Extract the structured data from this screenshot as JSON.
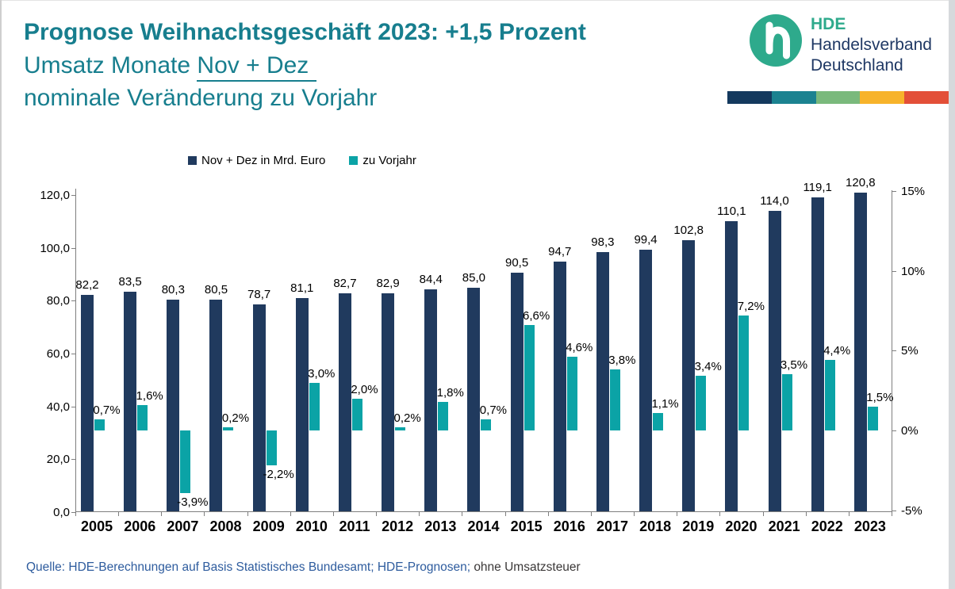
{
  "title": {
    "line1": "Prognose Weihnachtsgeschäft 2023: +1,5 Prozent",
    "line2_prefix": "Umsatz Monate ",
    "line2_underlined": "Nov + Dez",
    "line3": "nominale Veränderung zu Vorjahr",
    "color": "#177E8E"
  },
  "logo": {
    "acronym": "HDE",
    "name_line1": "Handelsverband",
    "name_line2": "Deutschland",
    "circle_color": "#2EAA8C",
    "text_color": "#1F3864",
    "stripe_colors": [
      "#14395E",
      "#1B8290",
      "#7AB97C",
      "#F7B32B",
      "#E34F38"
    ]
  },
  "legend": [
    {
      "label": "Nov + Dez in Mrd. Euro",
      "color": "#203A5E"
    },
    {
      "label": "zu Vorjahr",
      "color": "#0BA3A6"
    }
  ],
  "source": {
    "prefix": "Quelle: HDE-Berechnungen auf Basis Statistisches Bundesamt; HDE-Prognosen; ",
    "suffix": "ohne Umsatzsteuer"
  },
  "chart_data": {
    "type": "bar",
    "title": "Prognose Weihnachtsgeschäft 2023: +1,5 Prozent — Umsatz Monate Nov + Dez, nominale Veränderung zu Vorjahr",
    "categories": [
      "2005",
      "2006",
      "2007",
      "2008",
      "2009",
      "2010",
      "2011",
      "2012",
      "2013",
      "2014",
      "2015",
      "2016",
      "2017",
      "2018",
      "2019",
      "2020",
      "2021",
      "2022",
      "2023"
    ],
    "series": [
      {
        "name": "Nov + Dez in Mrd. Euro",
        "axis": "left",
        "color": "#203A5E",
        "values": [
          82.2,
          83.5,
          80.3,
          80.5,
          78.7,
          81.1,
          82.7,
          82.9,
          84.4,
          85.0,
          90.5,
          94.7,
          98.3,
          99.4,
          102.8,
          110.1,
          114.0,
          119.1,
          120.8
        ],
        "labels": [
          "82,2",
          "83,5",
          "80,3",
          "80,5",
          "78,7",
          "81,1",
          "82,7",
          "82,9",
          "84,4",
          "85,0",
          "90,5",
          "94,7",
          "98,3",
          "99,4",
          "102,8",
          "110,1",
          "114,0",
          "119,1",
          "120,8"
        ]
      },
      {
        "name": "zu Vorjahr",
        "axis": "right",
        "color": "#0BA3A6",
        "values": [
          0.7,
          1.6,
          -3.9,
          0.2,
          -2.2,
          3.0,
          2.0,
          0.2,
          1.8,
          0.7,
          6.6,
          4.6,
          3.8,
          1.1,
          3.4,
          7.2,
          3.5,
          4.4,
          1.5
        ],
        "labels": [
          "0,7%",
          "1,6%",
          "-3,9%",
          "0,2%",
          "-2,2%",
          "3,0%",
          "2,0%",
          "0,2%",
          "1,8%",
          "0,7%",
          "6,6%",
          "4,6%",
          "3,8%",
          "1,1%",
          "3,4%",
          "7,2%",
          "3,5%",
          "4,4%",
          "1,5%"
        ]
      }
    ],
    "left_axis": {
      "label": "Mrd. Euro",
      "tick_labels": [
        "0,0",
        "20,0",
        "40,0",
        "60,0",
        "80,0",
        "100,0",
        "120,0"
      ],
      "tick_values": [
        0,
        20,
        40,
        60,
        80,
        100,
        120
      ],
      "range": [
        0,
        123
      ]
    },
    "right_axis": {
      "label": "Veränderung zu Vorjahr",
      "tick_labels": [
        "-5%",
        "0%",
        "5%",
        "10%",
        "15%"
      ],
      "tick_values": [
        -5,
        0,
        5,
        10,
        15
      ],
      "range": [
        -5.1,
        15.1
      ]
    },
    "grid": false,
    "legend_position": "top"
  }
}
